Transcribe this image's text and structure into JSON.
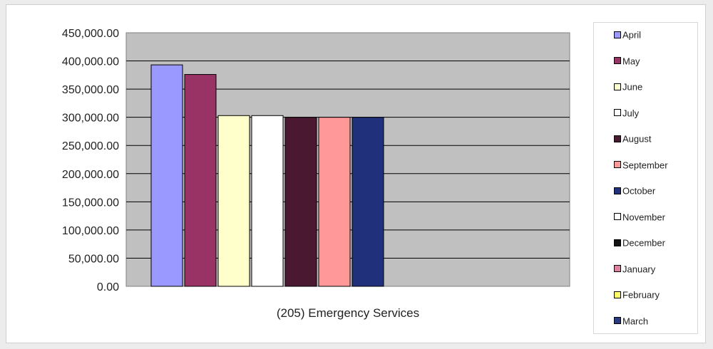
{
  "chart_data": {
    "type": "bar",
    "xlabel": "(205) Emergency Services",
    "categories": [
      "(205) Emergency Services"
    ],
    "ylim": [
      0,
      450000
    ],
    "yticks": [
      "0.00",
      "50,000.00",
      "100,000.00",
      "150,000.00",
      "200,000.00",
      "250,000.00",
      "300,000.00",
      "350,000.00",
      "400,000.00",
      "450,000.00"
    ],
    "grid": true,
    "legend_position": "right",
    "series": [
      {
        "name": "April",
        "values": [
          393000
        ],
        "color": "#9999ff"
      },
      {
        "name": "May",
        "values": [
          376000
        ],
        "color": "#993366"
      },
      {
        "name": "June",
        "values": [
          303000
        ],
        "color": "#ffffcc"
      },
      {
        "name": "July",
        "values": [
          303000
        ],
        "color": "#ffffff"
      },
      {
        "name": "August",
        "values": [
          300000
        ],
        "color": "#4a1830"
      },
      {
        "name": "September",
        "values": [
          300000
        ],
        "color": "#ff9999"
      },
      {
        "name": "October",
        "values": [
          300000
        ],
        "color": "#21307a"
      },
      {
        "name": "November",
        "values": [
          0
        ],
        "color": "#ffffff"
      },
      {
        "name": "December",
        "values": [
          0
        ],
        "color": "#111111"
      },
      {
        "name": "January",
        "values": [
          0
        ],
        "color": "#e080a0"
      },
      {
        "name": "February",
        "values": [
          0
        ],
        "color": "#ffff66"
      },
      {
        "name": "March",
        "values": [
          0
        ],
        "color": "#2a3a80"
      }
    ],
    "plot_background": "#c0c0c0"
  }
}
